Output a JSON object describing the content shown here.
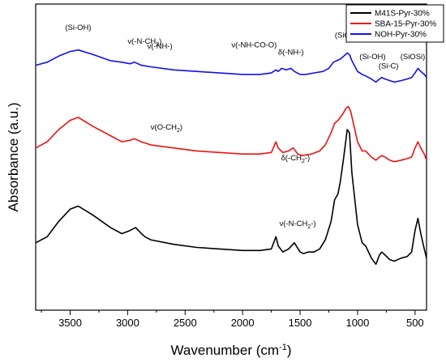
{
  "chart_data": {
    "type": "line",
    "xlabel_main": "Wavenumber (cm",
    "xlabel_sup": "-1",
    "xlabel_tail": ")",
    "ylabel": "Absorbance (a.u.)",
    "xlim": [
      3800,
      400
    ],
    "xticks": [
      3500,
      3000,
      2500,
      2000,
      1500,
      1000,
      500
    ],
    "ylim": [
      0,
      1
    ],
    "legend_position": "top-right",
    "series": [
      {
        "name": "M41S-Pyr-30%",
        "color": "#000000",
        "points": [
          [
            3800,
            0.22
          ],
          [
            3700,
            0.24
          ],
          [
            3600,
            0.29
          ],
          [
            3500,
            0.33
          ],
          [
            3430,
            0.34
          ],
          [
            3300,
            0.31
          ],
          [
            3150,
            0.27
          ],
          [
            3050,
            0.25
          ],
          [
            2980,
            0.26
          ],
          [
            2930,
            0.27
          ],
          [
            2880,
            0.25
          ],
          [
            2850,
            0.24
          ],
          [
            2800,
            0.23
          ],
          [
            2600,
            0.215
          ],
          [
            2400,
            0.205
          ],
          [
            2200,
            0.2
          ],
          [
            2000,
            0.195
          ],
          [
            1850,
            0.195
          ],
          [
            1750,
            0.2
          ],
          [
            1710,
            0.24
          ],
          [
            1690,
            0.21
          ],
          [
            1650,
            0.19
          ],
          [
            1600,
            0.2
          ],
          [
            1550,
            0.22
          ],
          [
            1500,
            0.19
          ],
          [
            1470,
            0.185
          ],
          [
            1430,
            0.19
          ],
          [
            1380,
            0.19
          ],
          [
            1330,
            0.2
          ],
          [
            1280,
            0.23
          ],
          [
            1230,
            0.29
          ],
          [
            1200,
            0.36
          ],
          [
            1170,
            0.38
          ],
          [
            1150,
            0.42
          ],
          [
            1120,
            0.5
          ],
          [
            1090,
            0.59
          ],
          [
            1070,
            0.58
          ],
          [
            1050,
            0.45
          ],
          [
            1000,
            0.28
          ],
          [
            960,
            0.22
          ],
          [
            930,
            0.21
          ],
          [
            880,
            0.17
          ],
          [
            840,
            0.15
          ],
          [
            810,
            0.18
          ],
          [
            790,
            0.19
          ],
          [
            760,
            0.18
          ],
          [
            720,
            0.165
          ],
          [
            680,
            0.16
          ],
          [
            620,
            0.17
          ],
          [
            570,
            0.175
          ],
          [
            530,
            0.19
          ],
          [
            500,
            0.26
          ],
          [
            475,
            0.3
          ],
          [
            450,
            0.25
          ],
          [
            420,
            0.2
          ],
          [
            400,
            0.17
          ]
        ]
      },
      {
        "name": "SBA-15-Pyr-30%",
        "color": "#ee1111",
        "points": [
          [
            3800,
            0.53
          ],
          [
            3700,
            0.55
          ],
          [
            3600,
            0.59
          ],
          [
            3500,
            0.62
          ],
          [
            3430,
            0.63
          ],
          [
            3300,
            0.6
          ],
          [
            3150,
            0.57
          ],
          [
            3050,
            0.55
          ],
          [
            2980,
            0.555
          ],
          [
            2940,
            0.56
          ],
          [
            2880,
            0.55
          ],
          [
            2800,
            0.54
          ],
          [
            2600,
            0.53
          ],
          [
            2400,
            0.52
          ],
          [
            2200,
            0.515
          ],
          [
            2000,
            0.51
          ],
          [
            1850,
            0.51
          ],
          [
            1750,
            0.515
          ],
          [
            1710,
            0.55
          ],
          [
            1690,
            0.53
          ],
          [
            1650,
            0.515
          ],
          [
            1600,
            0.52
          ],
          [
            1560,
            0.53
          ],
          [
            1520,
            0.51
          ],
          [
            1480,
            0.505
          ],
          [
            1400,
            0.51
          ],
          [
            1330,
            0.52
          ],
          [
            1280,
            0.54
          ],
          [
            1230,
            0.58
          ],
          [
            1200,
            0.61
          ],
          [
            1170,
            0.62
          ],
          [
            1130,
            0.64
          ],
          [
            1100,
            0.66
          ],
          [
            1080,
            0.665
          ],
          [
            1060,
            0.65
          ],
          [
            1030,
            0.6
          ],
          [
            1000,
            0.55
          ],
          [
            960,
            0.52
          ],
          [
            930,
            0.52
          ],
          [
            880,
            0.5
          ],
          [
            840,
            0.49
          ],
          [
            810,
            0.5
          ],
          [
            790,
            0.505
          ],
          [
            760,
            0.5
          ],
          [
            720,
            0.49
          ],
          [
            680,
            0.485
          ],
          [
            620,
            0.49
          ],
          [
            570,
            0.495
          ],
          [
            530,
            0.5
          ],
          [
            500,
            0.53
          ],
          [
            475,
            0.55
          ],
          [
            450,
            0.53
          ],
          [
            420,
            0.51
          ],
          [
            400,
            0.49
          ]
        ]
      },
      {
        "name": "NOH-Pyr-30%",
        "color": "#1010ee",
        "points": [
          [
            3800,
            0.8
          ],
          [
            3700,
            0.81
          ],
          [
            3600,
            0.83
          ],
          [
            3500,
            0.845
          ],
          [
            3430,
            0.85
          ],
          [
            3300,
            0.835
          ],
          [
            3150,
            0.815
          ],
          [
            3050,
            0.81
          ],
          [
            2980,
            0.805
          ],
          [
            2940,
            0.81
          ],
          [
            2880,
            0.8
          ],
          [
            2800,
            0.795
          ],
          [
            2600,
            0.785
          ],
          [
            2400,
            0.78
          ],
          [
            2200,
            0.775
          ],
          [
            2000,
            0.77
          ],
          [
            1850,
            0.77
          ],
          [
            1750,
            0.775
          ],
          [
            1710,
            0.785
          ],
          [
            1690,
            0.78
          ],
          [
            1660,
            0.79
          ],
          [
            1620,
            0.785
          ],
          [
            1580,
            0.79
          ],
          [
            1550,
            0.78
          ],
          [
            1500,
            0.77
          ],
          [
            1450,
            0.77
          ],
          [
            1380,
            0.775
          ],
          [
            1300,
            0.78
          ],
          [
            1250,
            0.79
          ],
          [
            1210,
            0.81
          ],
          [
            1180,
            0.815
          ],
          [
            1150,
            0.82
          ],
          [
            1120,
            0.83
          ],
          [
            1090,
            0.84
          ],
          [
            1070,
            0.835
          ],
          [
            1050,
            0.815
          ],
          [
            1000,
            0.78
          ],
          [
            960,
            0.77
          ],
          [
            930,
            0.765
          ],
          [
            880,
            0.755
          ],
          [
            840,
            0.745
          ],
          [
            810,
            0.755
          ],
          [
            790,
            0.76
          ],
          [
            760,
            0.755
          ],
          [
            720,
            0.75
          ],
          [
            680,
            0.745
          ],
          [
            620,
            0.75
          ],
          [
            570,
            0.755
          ],
          [
            530,
            0.76
          ],
          [
            500,
            0.775
          ],
          [
            475,
            0.79
          ],
          [
            450,
            0.78
          ],
          [
            420,
            0.77
          ],
          [
            400,
            0.76
          ]
        ]
      }
    ],
    "annotations": [
      {
        "text": "(Si-OH)",
        "x": 3430,
        "y": 0.915,
        "anchor": "middle"
      },
      {
        "text": "ν(-N-CH",
        "sub": "2",
        "tail": ")",
        "x": 3000,
        "y": 0.87,
        "anchor": "start"
      },
      {
        "text": "ν(-NH-)",
        "x": 2830,
        "y": 0.855,
        "anchor": "start"
      },
      {
        "text": "ν(-NH-CO-O)",
        "x": 1900,
        "y": 0.858,
        "anchor": "middle"
      },
      {
        "text": "δ(-NH-)",
        "x": 1580,
        "y": 0.835,
        "anchor": "middle"
      },
      {
        "text": "(SiOSi)",
        "x": 1090,
        "y": 0.89,
        "anchor": "middle"
      },
      {
        "text": "(Si-OH)",
        "x": 870,
        "y": 0.82,
        "anchor": "middle"
      },
      {
        "text": "(Si-C)",
        "x": 730,
        "y": 0.79,
        "anchor": "middle"
      },
      {
        "text": "(SiOSi)",
        "x": 520,
        "y": 0.82,
        "anchor": "middle"
      },
      {
        "text": "ν(O-CH",
        "sub": "2",
        "tail": ")",
        "x": 2800,
        "y": 0.59,
        "anchor": "start"
      },
      {
        "text": "δ(-CH",
        "sub": "2",
        "tail": "-)",
        "x": 1540,
        "y": 0.49,
        "anchor": "middle"
      },
      {
        "text": "ν(-N-CH",
        "sub": "2",
        "tail": "-)",
        "x": 1680,
        "y": 0.275,
        "anchor": "start"
      }
    ]
  }
}
